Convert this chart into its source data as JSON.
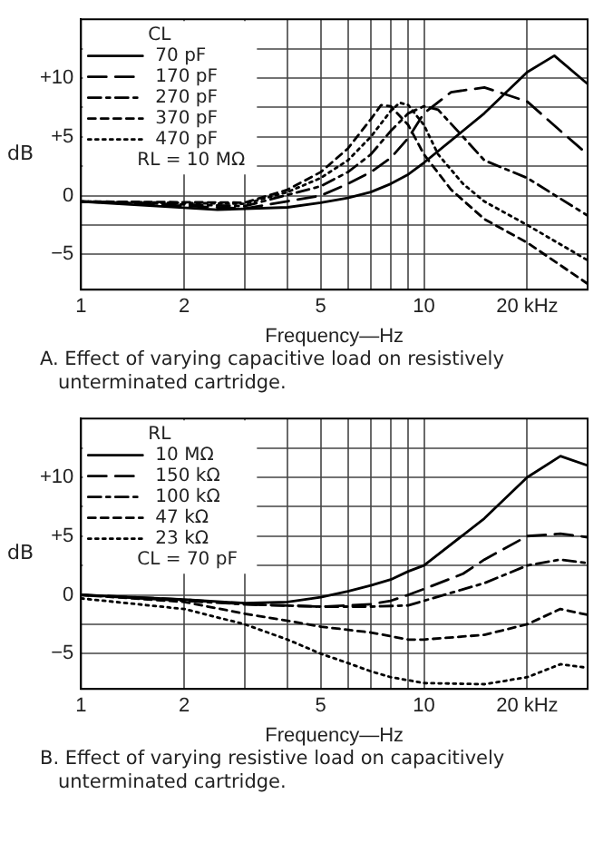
{
  "chart_data": [
    {
      "type": "line",
      "title": "A. Effect of varying capacitive load on resistively unterminated cartridge.",
      "xlabel": "Frequency—Hz",
      "ylabel": "dB",
      "legend_title": "CL",
      "legend": "top left",
      "grid": true,
      "log": "x",
      "marker": "none",
      "xlim": [
        1,
        30
      ],
      "ylim": [
        -8,
        15
      ],
      "xticks": [
        1,
        2,
        {
          "value": 3,
          "label": null
        },
        {
          "value": 4,
          "label": null
        },
        5,
        {
          "value": 6,
          "label": null
        },
        {
          "value": 7,
          "label": null
        },
        {
          "value": 8,
          "label": null
        },
        {
          "value": 9,
          "label": null
        },
        10,
        {
          "value": 20,
          "label": "20 kHz"
        }
      ],
      "yticks": [
        {
          "value": -5,
          "label": "−5"
        },
        {
          "value": -2.5,
          "label": null
        },
        0,
        {
          "value": 2.5,
          "label": null
        },
        {
          "value": 5,
          "label": "+5"
        },
        {
          "value": 7.5,
          "label": null
        },
        {
          "value": 10,
          "label": "+10"
        },
        {
          "value": 12.5,
          "label": null
        }
      ],
      "annotations": [
        "RL = 10 MΩ"
      ],
      "series": [
        {
          "name": "70 pF",
          "color": "#000000",
          "line_style": "solid",
          "x": [
            1,
            2.5,
            4,
            5,
            6,
            7,
            8,
            9,
            10,
            15,
            20,
            24,
            30
          ],
          "values": [
            -0.5,
            -1.2,
            -1,
            -0.6,
            -0.2,
            0.3,
            1,
            1.8,
            2.8,
            7,
            10.5,
            11.9,
            9.5
          ]
        },
        {
          "name": "170 pF",
          "color": "#000000",
          "line_style": "longdash",
          "x": [
            1,
            3,
            5,
            6,
            7,
            8,
            9,
            10,
            12,
            15,
            20,
            25,
            30
          ],
          "values": [
            -0.5,
            -1.1,
            0,
            1,
            2,
            3.2,
            4.9,
            7,
            8.8,
            9.2,
            8,
            5.5,
            3.5
          ]
        },
        {
          "name": "270 pF",
          "color": "#000000",
          "line_style": "dashdot",
          "x": [
            1,
            3,
            5,
            6,
            7,
            8,
            9,
            10,
            11,
            13,
            15,
            20,
            30
          ],
          "values": [
            -0.5,
            -0.9,
            0.8,
            2,
            3.5,
            5.5,
            7,
            7.6,
            7.3,
            5,
            3,
            1.5,
            -1.7
          ]
        },
        {
          "name": "370 pF",
          "color": "#000000",
          "line_style": "dashed",
          "x": [
            1,
            3,
            4,
            5,
            6,
            7,
            7.5,
            8,
            9,
            10,
            12,
            15,
            20,
            30
          ],
          "values": [
            -0.5,
            -0.6,
            0.5,
            2,
            4,
            6.5,
            7.7,
            7.6,
            6,
            3.5,
            0.5,
            -2,
            -4,
            -7.5
          ]
        },
        {
          "name": "470 pF",
          "color": "#000000",
          "line_style": "dotted",
          "x": [
            1,
            3,
            4,
            5,
            6,
            7,
            8,
            8.5,
            9,
            10,
            11,
            13,
            15,
            20,
            30
          ],
          "values": [
            -0.5,
            -0.7,
            0.3,
            1.5,
            3,
            5,
            7.2,
            7.9,
            7.7,
            6,
            3.5,
            1,
            -0.5,
            -2.5,
            -5.5
          ]
        }
      ]
    },
    {
      "type": "line",
      "title": "B. Effect of varying resistive load on capacitively unterminated cartridge.",
      "xlabel": "Frequency—Hz",
      "ylabel": "dB",
      "legend_title": "RL",
      "legend": "top left",
      "grid": true,
      "log": "x",
      "marker": "none",
      "xlim": [
        1,
        30
      ],
      "ylim": [
        -8,
        15
      ],
      "xticks": [
        1,
        2,
        {
          "value": 3,
          "label": null
        },
        {
          "value": 4,
          "label": null
        },
        5,
        {
          "value": 6,
          "label": null
        },
        {
          "value": 7,
          "label": null
        },
        {
          "value": 8,
          "label": null
        },
        {
          "value": 9,
          "label": null
        },
        10,
        {
          "value": 20,
          "label": "20 kHz"
        }
      ],
      "yticks": [
        {
          "value": -5,
          "label": "−5"
        },
        {
          "value": -2.5,
          "label": null
        },
        0,
        {
          "value": 2.5,
          "label": null
        },
        {
          "value": 5,
          "label": "+5"
        },
        {
          "value": 7.5,
          "label": null
        },
        {
          "value": 10,
          "label": "+10"
        },
        {
          "value": 12.5,
          "label": null
        }
      ],
      "annotations": [
        "CL = 70 pF"
      ],
      "series": [
        {
          "name": "10 MΩ",
          "color": "#000000",
          "line_style": "solid",
          "x": [
            1,
            2,
            3,
            4,
            5,
            6,
            7,
            8,
            9,
            10,
            15,
            20,
            25,
            30
          ],
          "values": [
            0,
            -0.4,
            -0.7,
            -0.6,
            -0.2,
            0.3,
            0.8,
            1.3,
            2,
            2.5,
            6.5,
            10,
            11.8,
            11
          ]
        },
        {
          "name": "150 kΩ",
          "color": "#000000",
          "line_style": "longdash",
          "x": [
            1,
            2,
            3,
            5,
            6,
            7,
            8,
            9,
            10,
            13,
            15,
            20,
            25,
            30
          ],
          "values": [
            0,
            -0.4,
            -0.8,
            -1,
            -0.9,
            -0.8,
            -0.5,
            0,
            0.5,
            1.8,
            3,
            5,
            5.2,
            4.9
          ]
        },
        {
          "name": "100 kΩ",
          "color": "#000000",
          "line_style": "dashdot",
          "x": [
            1,
            3,
            5,
            7,
            9,
            10,
            15,
            20,
            25,
            30
          ],
          "values": [
            0,
            -0.8,
            -1,
            -1,
            -0.9,
            -0.5,
            1,
            2.5,
            3,
            2.7
          ]
        },
        {
          "name": "47 kΩ",
          "color": "#000000",
          "line_style": "dashed",
          "x": [
            1,
            2,
            3,
            4,
            5,
            7,
            9,
            10,
            15,
            20,
            25,
            30
          ],
          "values": [
            0,
            -0.6,
            -1.6,
            -2.2,
            -2.7,
            -3.2,
            -3.8,
            -3.8,
            -3.4,
            -2.5,
            -1.2,
            -1.7
          ]
        },
        {
          "name": "23 kΩ",
          "color": "#000000",
          "line_style": "dotted",
          "x": [
            1,
            2,
            3,
            4,
            5,
            6,
            7,
            8,
            10,
            15,
            20,
            25,
            30
          ],
          "values": [
            -0.3,
            -1.2,
            -2.5,
            -3.8,
            -5,
            -5.8,
            -6.5,
            -7,
            -7.5,
            -7.6,
            -7,
            -5.9,
            -6.2
          ]
        }
      ]
    }
  ]
}
